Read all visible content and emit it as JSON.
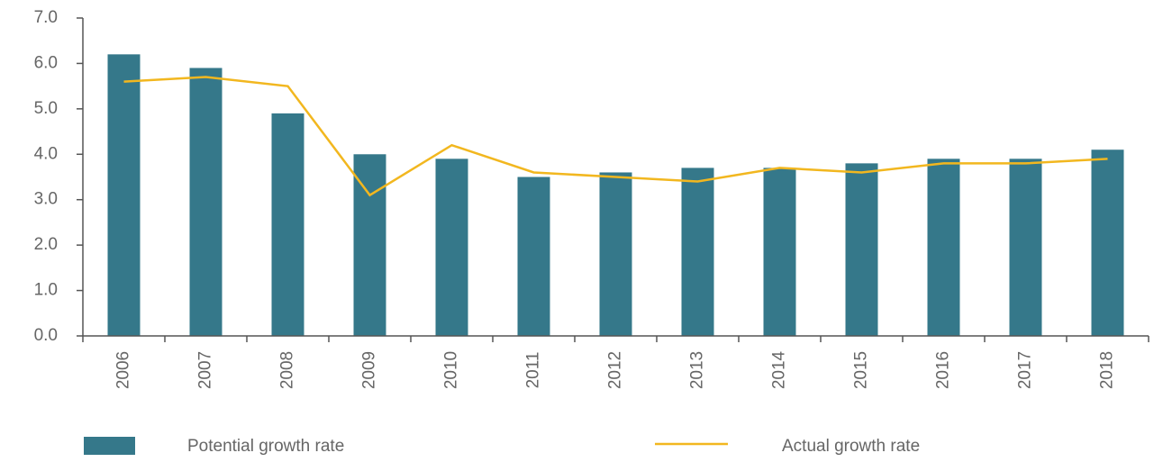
{
  "chart_data": {
    "type": "bar",
    "categories": [
      "2006",
      "2007",
      "2008",
      "2009",
      "2010",
      "2011",
      "2012",
      "2013",
      "2014",
      "2015",
      "2016",
      "2017",
      "2018"
    ],
    "series": [
      {
        "name": "Potential growth rate",
        "type": "bar",
        "color": "#35788a",
        "values": [
          6.2,
          5.9,
          4.9,
          4.0,
          3.9,
          3.5,
          3.6,
          3.7,
          3.7,
          3.8,
          3.9,
          3.9,
          4.1
        ]
      },
      {
        "name": "Actual growth rate",
        "type": "line",
        "color": "#f2b71f",
        "values": [
          5.6,
          5.7,
          5.5,
          3.1,
          4.2,
          3.6,
          3.5,
          3.4,
          3.7,
          3.6,
          3.8,
          3.8,
          3.9
        ]
      }
    ],
    "ylim": [
      0,
      7
    ],
    "yticks": [
      {
        "value": 0,
        "label": "0.0"
      },
      {
        "value": 1,
        "label": "1.0"
      },
      {
        "value": 2,
        "label": "2.0"
      },
      {
        "value": 3,
        "label": "3.0"
      },
      {
        "value": 4,
        "label": "4.0"
      },
      {
        "value": 5,
        "label": "5.0"
      },
      {
        "value": 6,
        "label": "6.0"
      },
      {
        "value": 7,
        "label": "7.0"
      }
    ],
    "legend": "bottom"
  }
}
